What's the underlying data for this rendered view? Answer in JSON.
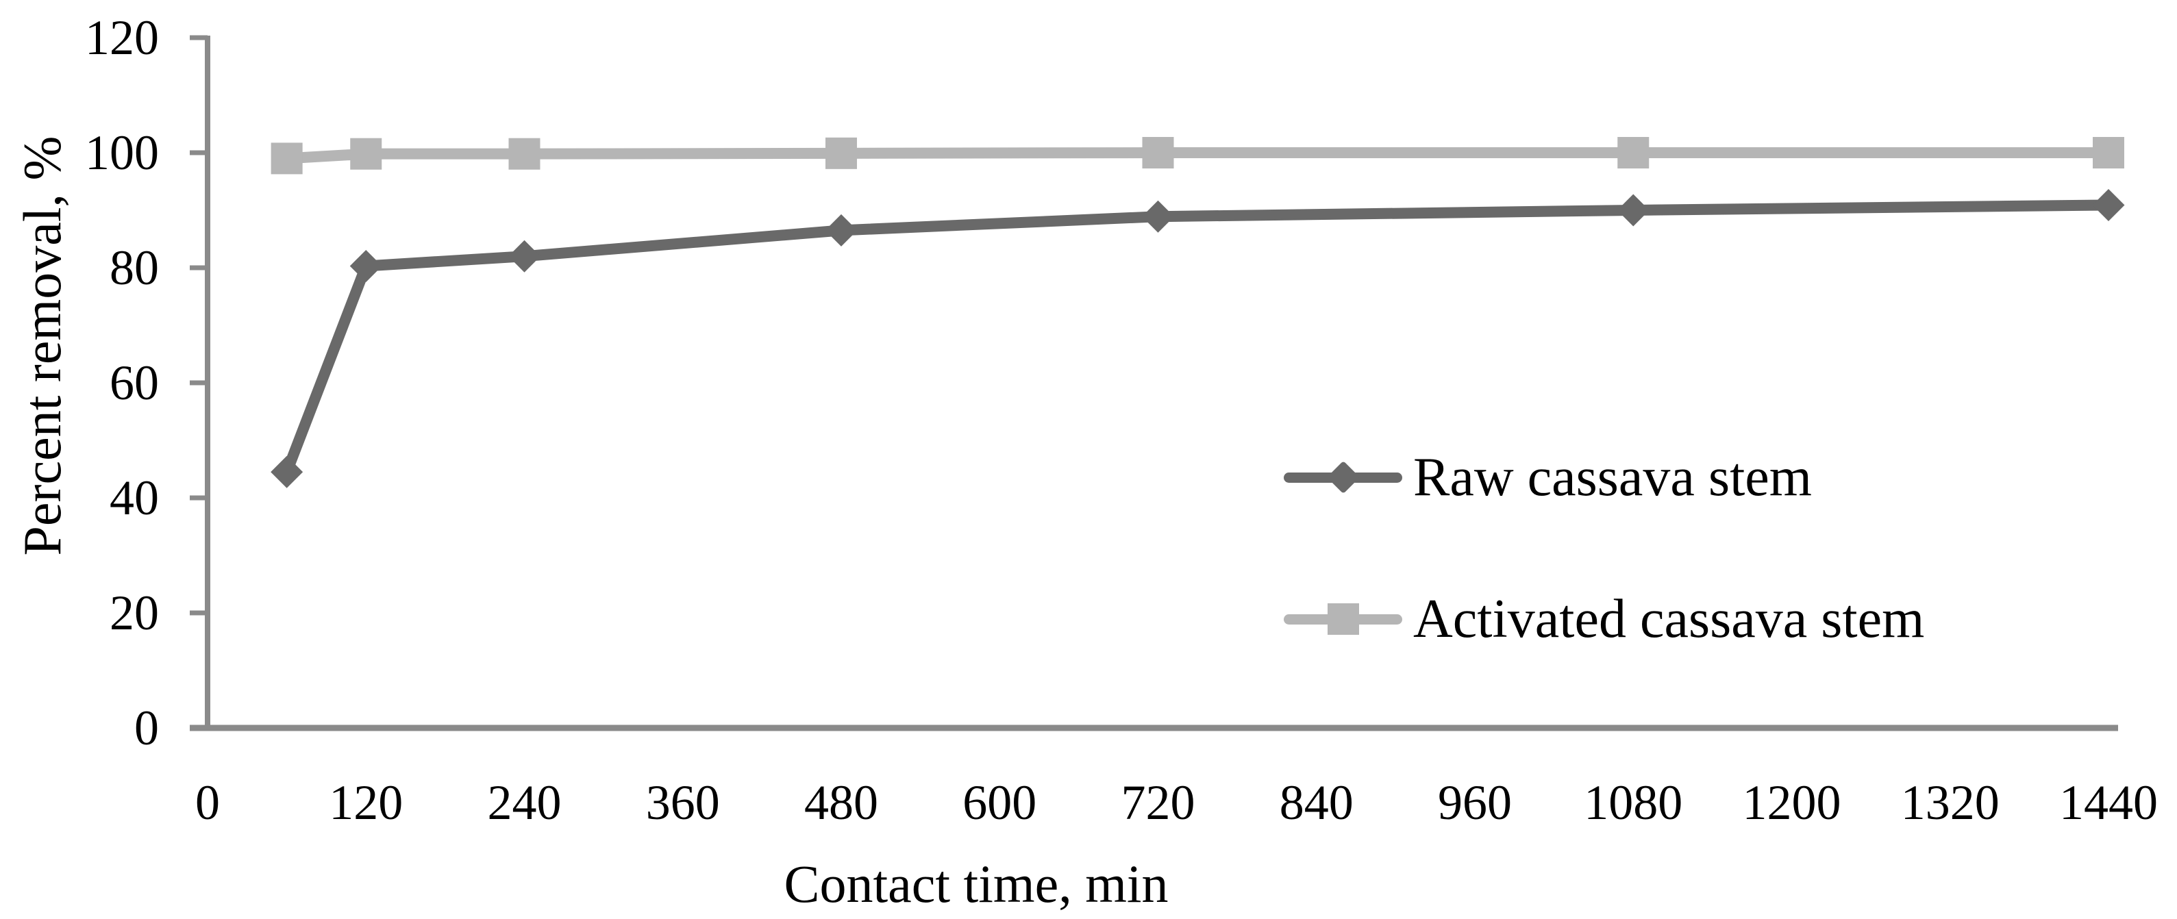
{
  "chart_data": {
    "type": "line",
    "x": [
      60,
      120,
      240,
      480,
      720,
      1080,
      1440
    ],
    "series": [
      {
        "name": "Raw cassava stem",
        "marker": "diamond",
        "color": "#696969",
        "values": [
          44.5,
          80.3,
          82.0,
          86.5,
          88.9,
          90.0,
          90.9
        ]
      },
      {
        "name": "Activated cassava stem",
        "marker": "square",
        "color": "#b5b5b5",
        "values": [
          99.0,
          99.8,
          99.8,
          99.9,
          100.0,
          100.0,
          100.0
        ]
      }
    ],
    "title": "",
    "xlabel": "Contact time, min",
    "ylabel": "Percent removal, %",
    "xlim": [
      0,
      1440
    ],
    "ylim": [
      0,
      120
    ],
    "x_ticks": [
      0,
      120,
      240,
      360,
      480,
      600,
      720,
      840,
      960,
      1080,
      1200,
      1320,
      1440
    ],
    "y_ticks": [
      0,
      20,
      40,
      60,
      80,
      100,
      120
    ],
    "grid": false,
    "legend_position": "center-right-inside",
    "axis_color": "#8a8a8a",
    "text_color": "#000000",
    "background_color": "#ffffff"
  }
}
